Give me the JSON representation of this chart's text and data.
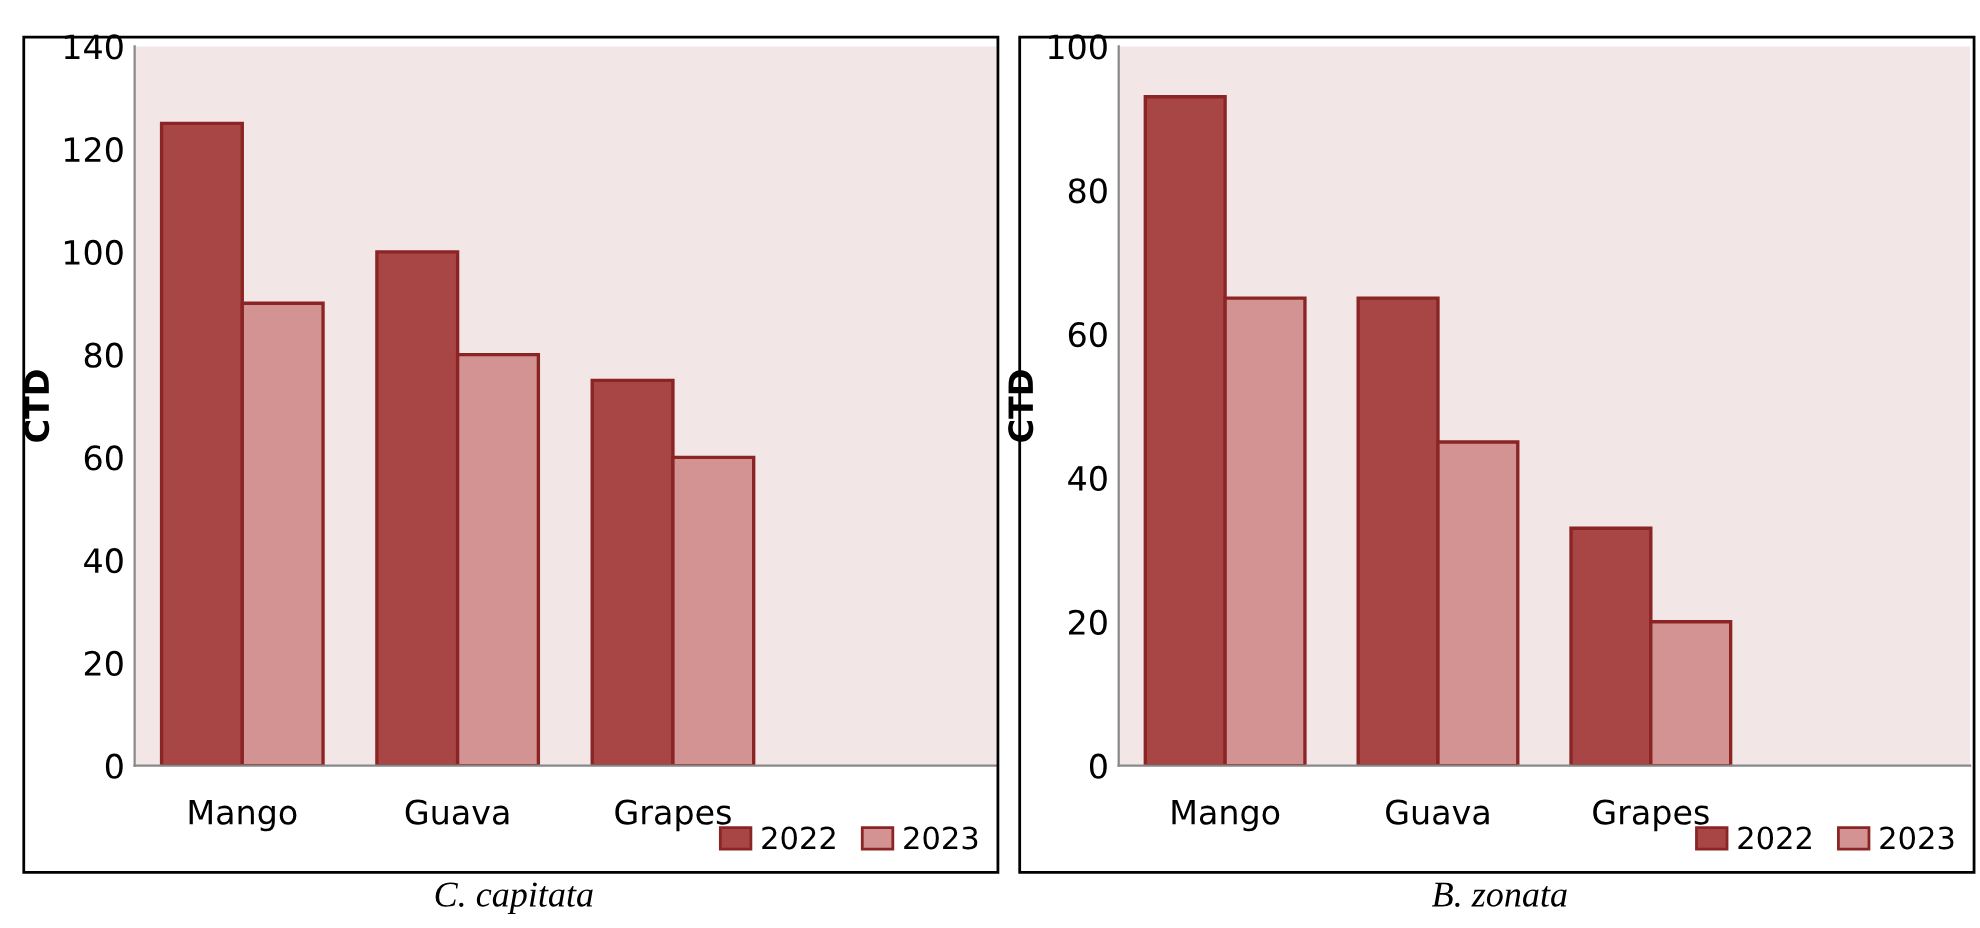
{
  "chart_data": [
    {
      "type": "bar",
      "title": "C. capitata",
      "ylabel": "CTD",
      "categories": [
        "Mango",
        "Guava",
        "Grapes",
        null
      ],
      "ylim": [
        0,
        140
      ],
      "yticks": [
        0,
        20,
        40,
        60,
        80,
        100,
        120,
        140
      ],
      "legend": "bottom right",
      "grid": false,
      "series": [
        {
          "name": "2022",
          "color": "#a84545",
          "values": [
            125,
            100,
            75,
            null
          ]
        },
        {
          "name": "2023",
          "color": "#d49393",
          "values": [
            90,
            80,
            60,
            null
          ]
        }
      ]
    },
    {
      "type": "bar",
      "title": "B. zonata",
      "ylabel": "CTD",
      "categories": [
        "Mango",
        "Guava",
        "Grapes",
        null
      ],
      "ylim": [
        0,
        100
      ],
      "yticks": [
        0,
        20,
        40,
        60,
        80,
        100
      ],
      "legend": "bottom right",
      "grid": false,
      "series": [
        {
          "name": "2022",
          "color": "#a84545",
          "values": [
            93,
            65,
            33,
            null
          ]
        },
        {
          "name": "2023",
          "color": "#d49393",
          "values": [
            65,
            45,
            20,
            null
          ]
        }
      ]
    }
  ]
}
